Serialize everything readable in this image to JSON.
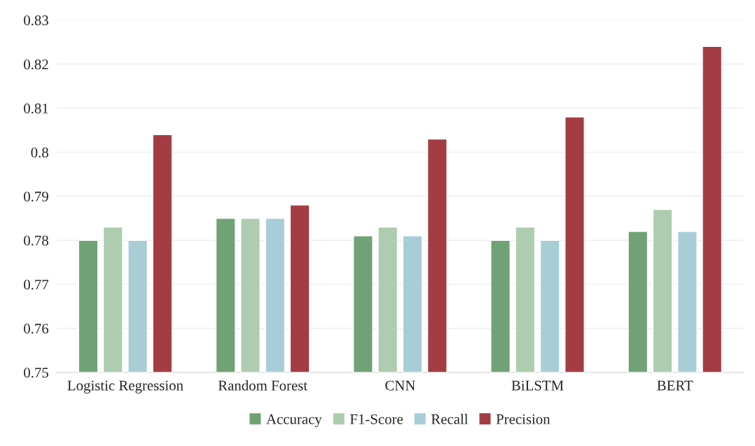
{
  "chart_data": {
    "type": "bar",
    "categories": [
      "Logistic Regression",
      "Random Forest",
      "CNN",
      "BiLSTM",
      "BERT"
    ],
    "series": [
      {
        "name": "Accuracy",
        "color": "#70a275",
        "values": [
          0.78,
          0.785,
          0.781,
          0.78,
          0.782
        ]
      },
      {
        "name": "F1-Score",
        "color": "#aecdb0",
        "values": [
          0.783,
          0.785,
          0.783,
          0.783,
          0.787
        ]
      },
      {
        "name": "Recall",
        "color": "#a8cdd6",
        "values": [
          0.78,
          0.785,
          0.781,
          0.78,
          0.782
        ]
      },
      {
        "name": "Precision",
        "color": "#a33c43",
        "values": [
          0.804,
          0.788,
          0.803,
          0.808,
          0.824
        ]
      }
    ],
    "ylim": [
      0.75,
      0.83
    ],
    "yticks": [
      0.75,
      0.76,
      0.77,
      0.78,
      0.79,
      0.8,
      0.81,
      0.82,
      0.83
    ],
    "grid": "y",
    "legend": "bottom"
  }
}
